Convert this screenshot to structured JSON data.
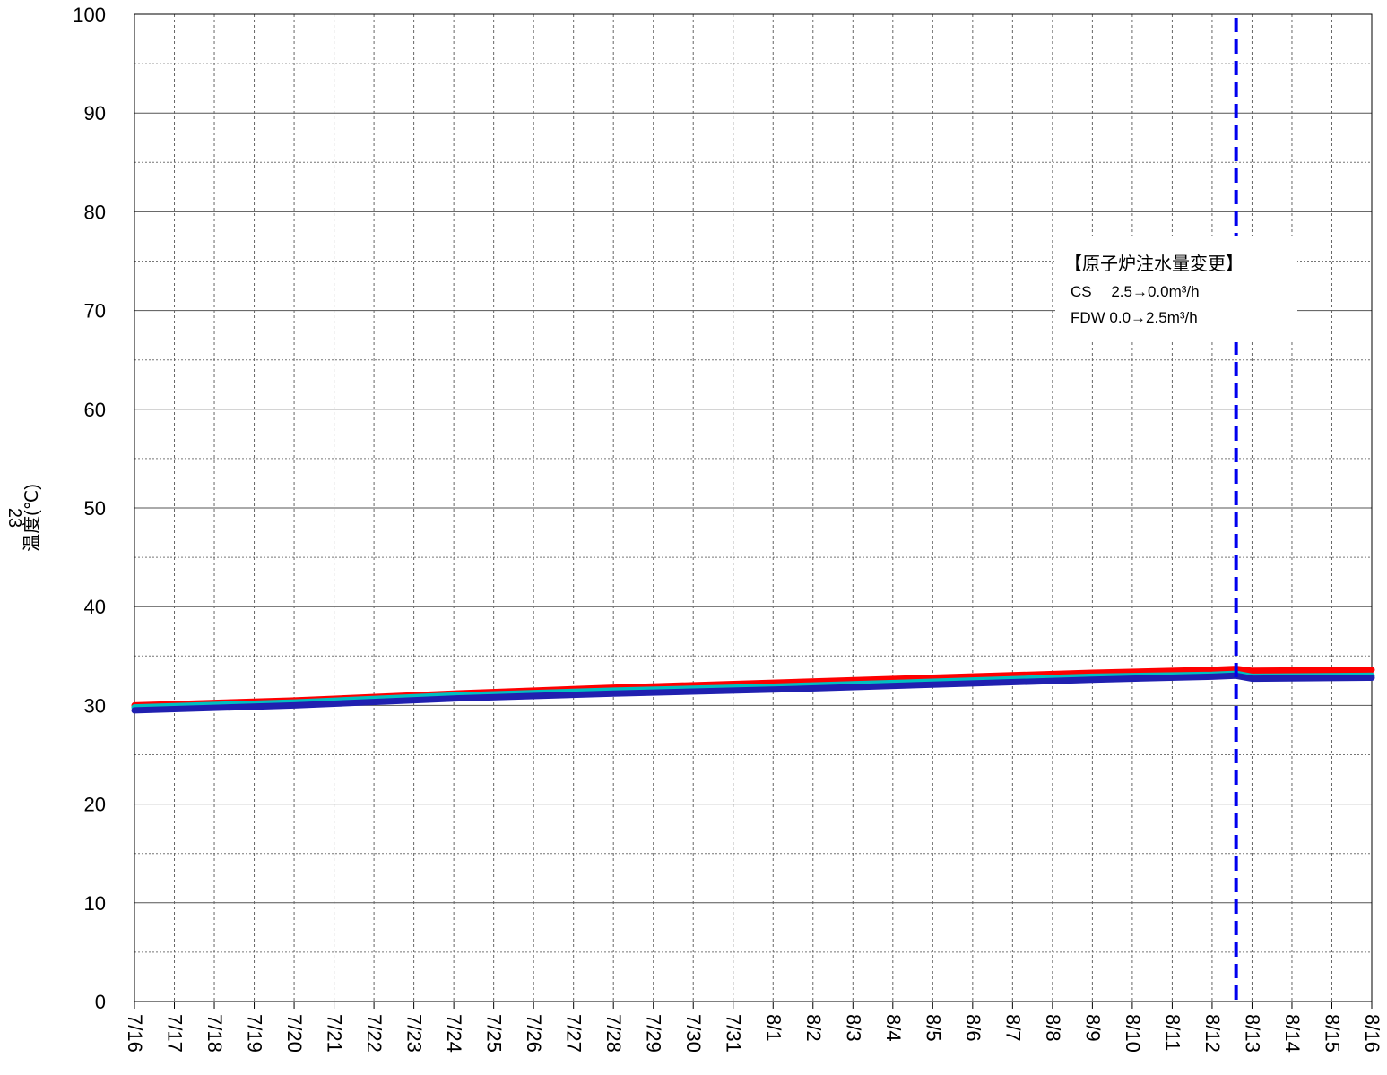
{
  "chart_data": {
    "type": "line",
    "title": "",
    "page_number": "23",
    "ylabel": "温度(℃)",
    "xlabel": "",
    "ylim": [
      0,
      100
    ],
    "yticks": [
      "0",
      "10",
      "20",
      "30",
      "40",
      "50",
      "60",
      "70",
      "80",
      "90",
      "100"
    ],
    "x_tick_labels": [
      "7/16",
      "7/17",
      "7/18",
      "7/19",
      "7/20",
      "7/21",
      "7/22",
      "7/23",
      "7/24",
      "7/25",
      "7/26",
      "7/27",
      "7/28",
      "7/29",
      "7/30",
      "7/31",
      "8/1",
      "8/2",
      "8/3",
      "8/4",
      "8/5",
      "8/6",
      "8/7",
      "8/8",
      "8/9",
      "8/10",
      "8/11",
      "8/12",
      "8/13",
      "8/14",
      "8/15",
      "8/16"
    ],
    "grid": true,
    "series": [
      {
        "color": "#ff0000",
        "x": [
          "7/16",
          "7/20",
          "7/24",
          "7/28",
          "8/1",
          "8/5",
          "8/9",
          "8/12",
          "8/12.6",
          "8/13",
          "8/16"
        ],
        "values": [
          30.0,
          30.5,
          31.2,
          31.8,
          32.3,
          32.8,
          33.3,
          33.6,
          33.7,
          33.5,
          33.6
        ]
      },
      {
        "color": "#00c0c0",
        "x": [
          "7/16",
          "7/20",
          "7/24",
          "7/28",
          "8/1",
          "8/5",
          "8/9",
          "8/12",
          "8/12.6",
          "8/13",
          "8/16"
        ],
        "values": [
          29.8,
          30.3,
          31.0,
          31.5,
          31.9,
          32.4,
          32.9,
          33.1,
          33.2,
          32.9,
          33.0
        ]
      },
      {
        "color": "#2020b0",
        "x": [
          "7/16",
          "7/20",
          "7/24",
          "7/28",
          "8/1",
          "8/5",
          "8/9",
          "8/12",
          "8/12.6",
          "8/13",
          "8/16"
        ],
        "values": [
          29.5,
          30.0,
          30.7,
          31.2,
          31.6,
          32.1,
          32.6,
          32.9,
          33.0,
          32.7,
          32.8
        ]
      }
    ],
    "event_line": {
      "x": "8/12.6",
      "color": "#0000ee",
      "style": "dashed"
    },
    "annotation": {
      "title": "【原子炉注水量変更】",
      "line1": "CS　 2.5→0.0m³/h",
      "line2": "FDW  0.0→2.5m³/h"
    }
  }
}
